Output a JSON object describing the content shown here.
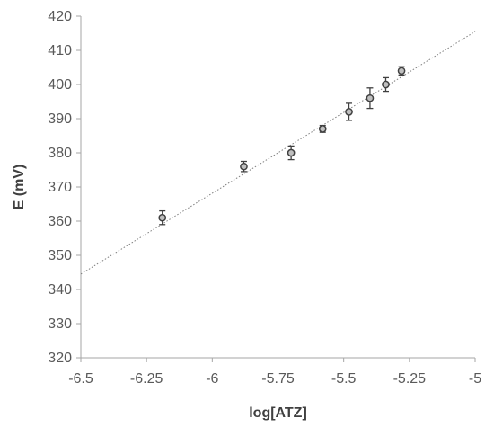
{
  "chart_data": {
    "type": "scatter",
    "title": "",
    "xlabel": "log[ATZ]",
    "ylabel": "E (mV)",
    "xlim": [
      -6.5,
      -5
    ],
    "ylim": [
      320,
      420
    ],
    "xticks": [
      -6.5,
      -6.25,
      -6,
      -5.75,
      -5.5,
      -5.25,
      -5
    ],
    "xtick_labels": [
      "-6.5",
      "-6.25",
      "-6",
      "-5.75",
      "-5.5",
      "-5.25",
      "-5"
    ],
    "yticks": [
      320,
      330,
      340,
      350,
      360,
      370,
      380,
      390,
      400,
      410,
      420
    ],
    "ytick_labels": [
      "320",
      "330",
      "340",
      "350",
      "360",
      "370",
      "380",
      "390",
      "400",
      "410",
      "420"
    ],
    "grid": false,
    "legend": "none",
    "series": [
      {
        "x": [
          -6.19,
          -5.88,
          -5.7,
          -5.58,
          -5.48,
          -5.4,
          -5.34,
          -5.28
        ],
        "y": [
          361,
          376,
          380,
          387,
          392,
          396,
          400,
          404
        ],
        "error": [
          2,
          1.5,
          2,
          1,
          2.5,
          3,
          2,
          1.2
        ]
      }
    ],
    "trendline": {
      "x": [
        -6.5,
        -5
      ],
      "y": [
        344.5,
        415.5
      ],
      "style": "dotted"
    },
    "colors": {
      "marker_fill": "#bfbfbf",
      "marker_edge": "#404040",
      "axis": "#a6a6a6",
      "trendline": "#7f7f7f"
    }
  }
}
